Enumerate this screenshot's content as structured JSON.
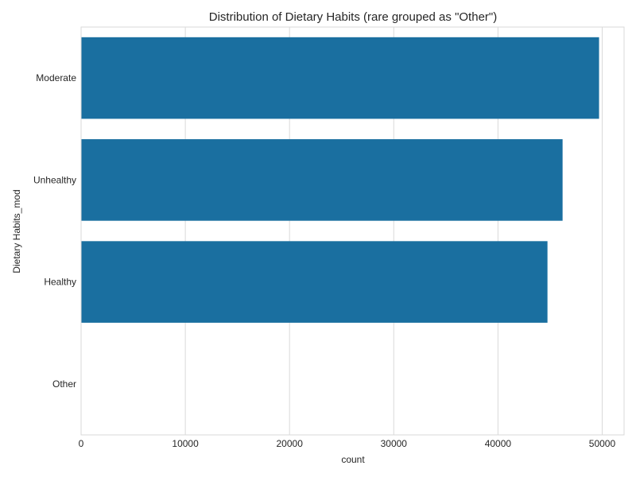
{
  "chart_data": {
    "type": "bar",
    "orientation": "horizontal",
    "title": "Distribution of Dietary Habits (rare grouped as \"Other\")",
    "xlabel": "count",
    "ylabel": "Dietary Habits_mod",
    "categories": [
      "Moderate",
      "Unhealthy",
      "Healthy",
      "Other"
    ],
    "values": [
      49700,
      46200,
      44750,
      12
    ],
    "xlim": [
      0,
      52100
    ],
    "xticks": [
      0,
      10000,
      20000,
      30000,
      40000,
      50000
    ],
    "xtick_labels": [
      "0",
      "10000",
      "20000",
      "30000",
      "40000",
      "50000"
    ],
    "grid": true,
    "legend": "none",
    "bar_color": "#1a6fa0",
    "grid_color": "#d9d9d9"
  }
}
